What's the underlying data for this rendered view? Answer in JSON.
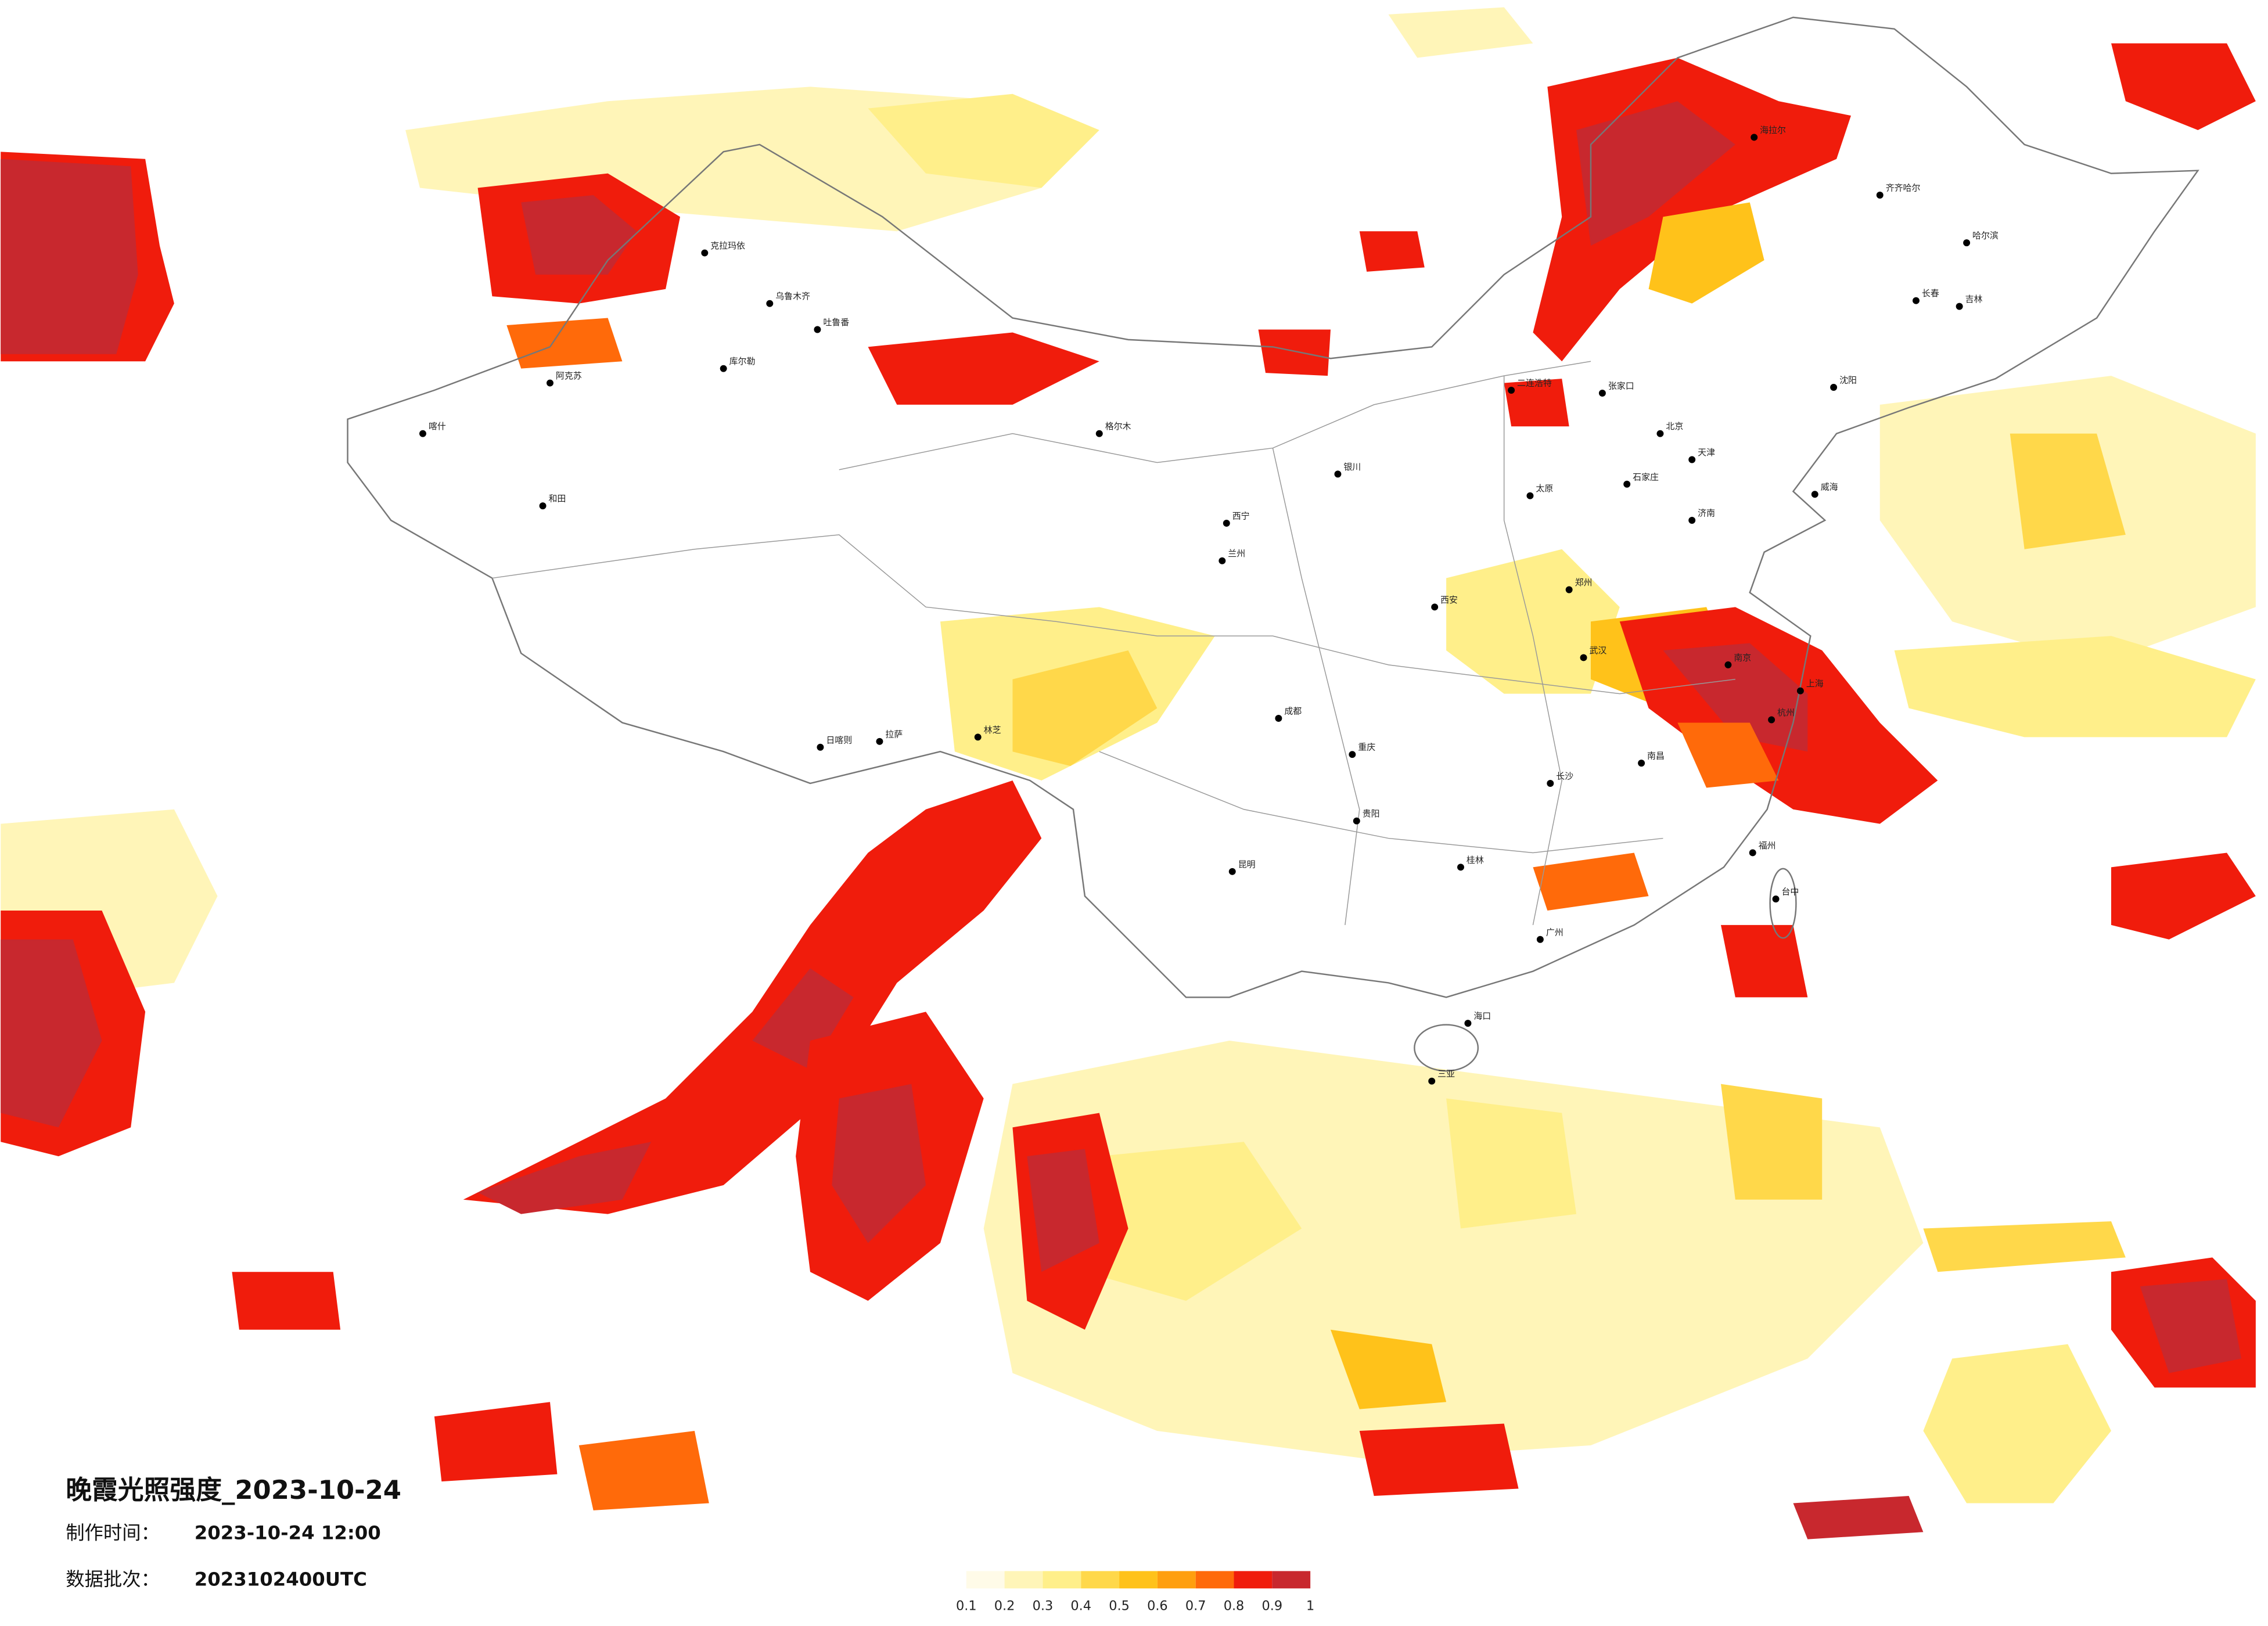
{
  "title": "晚霞光照强度_2023-10-24",
  "made_time_label": "制作时间：",
  "made_time": "2023-10-24 12:00",
  "batch_label": "数据批次：",
  "batch": "2023102400UTC",
  "legend": {
    "ticks": [
      0.1,
      0.2,
      0.3,
      0.4,
      0.5,
      0.6,
      0.7,
      0.8,
      0.9,
      1
    ],
    "colors": [
      "#fffbe8",
      "#fff5b8",
      "#ffef8a",
      "#ffd84a",
      "#ffc21a",
      "#ff9f0f",
      "#ff6a0a",
      "#f01c0c",
      "#c8282e"
    ]
  },
  "cities": [
    "海拉尔",
    "齐齐哈尔",
    "哈尔滨",
    "长春",
    "吉林",
    "沈阳",
    "威海",
    "克拉玛依",
    "乌鲁木齐",
    "吐鲁番",
    "喀什",
    "阿克苏",
    "和田",
    "库尔勒",
    "格尔木",
    "日喀则",
    "拉萨",
    "林芝",
    "西宁",
    "银川",
    "兰州",
    "二连浩特",
    "张家口",
    "北京",
    "天津",
    "石家庄",
    "太原",
    "济南",
    "郑州",
    "西安",
    "成都",
    "重庆",
    "武汉",
    "南京",
    "上海",
    "杭州",
    "南昌",
    "长沙",
    "贵阳",
    "昆明",
    "桂林",
    "广州",
    "福州",
    "台中",
    "海口",
    "三亚"
  ]
}
